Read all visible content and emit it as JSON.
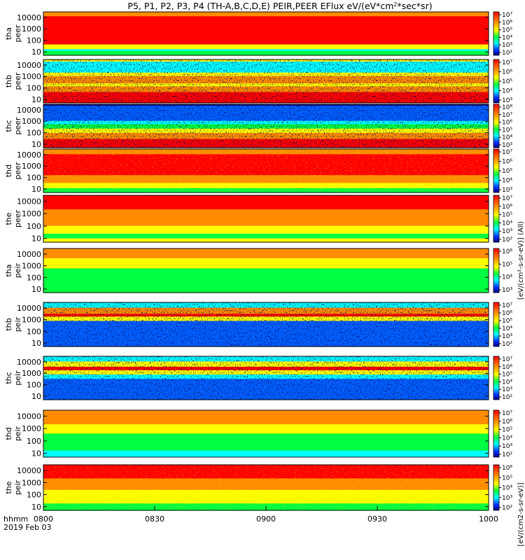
{
  "chart_data": {
    "type": "heatmap",
    "title": "P5, P1, P2, P3, P4 (TH-A,B,C,D,E) PEIR,PEER EFlux eV/(eV*cm",
    "title_sup": "2",
    "title_end": "*sec*sr)",
    "x_tick_labels": [
      "0800",
      "0830",
      "0900",
      "0930",
      "1000"
    ],
    "x_ticks_minutes": [
      0,
      30,
      60,
      90,
      120
    ],
    "xlim": [
      "08:00",
      "10:00"
    ],
    "x_axis_label": "hhmm",
    "x_axis_date": "2019 Feb 03",
    "y_scale": "log",
    "ylim": [
      5,
      30000
    ],
    "y_tick_labels": [
      "10",
      "100",
      "1000",
      "10000"
    ],
    "colorbar_scale": "log",
    "colorbar_title_peer": "[eV/(cm²-s-sr-eV)] (All)",
    "colorbar_title_peir": "[eV/(cm2-s-sr-eV)]",
    "colors": {
      "red": "#ff0000",
      "orange": "#ff8c00",
      "yellow": "#ffff00",
      "green": "#00ff40",
      "cyan": "#00ffff",
      "blue": "#0060ff",
      "navy": "#000080",
      "black": "#000000"
    },
    "panels": [
      {
        "l1": "tha",
        "l2": "peer",
        "cb_ticks": [
          "10⁷",
          "10⁶",
          "10⁵",
          "10⁴",
          "10³",
          "10²"
        ]
      },
      {
        "l1": "thb",
        "l2": "peer",
        "cb_ticks": [
          "10⁷",
          "10⁶",
          "10⁵",
          "10⁴",
          "10³"
        ]
      },
      {
        "l1": "thc",
        "l2": "peer",
        "cb_ticks": [
          "10⁸",
          "10⁷",
          "10⁶",
          "10⁵",
          "10⁴",
          "10³"
        ]
      },
      {
        "l1": "thd",
        "l2": "peer",
        "cb_ticks": [
          "10⁷",
          "10⁶",
          "10⁵",
          "10⁴",
          "10³"
        ]
      },
      {
        "l1": "the",
        "l2": "peer",
        "cb_ticks": [
          "10⁷",
          "10⁶",
          "10⁵",
          "10⁴",
          "10³",
          "10²"
        ]
      },
      {
        "l1": "tha",
        "l2": "peir",
        "cb_ticks": [
          "10⁶",
          "10⁵",
          "10⁴",
          "10³"
        ]
      },
      {
        "l1": "thb",
        "l2": "peir",
        "cb_ticks": [
          "10⁷",
          "10⁶",
          "10⁵",
          "10⁴",
          "10³",
          "10²"
        ]
      },
      {
        "l1": "thc",
        "l2": "peir",
        "cb_ticks": [
          "10⁷",
          "10⁶",
          "10⁵",
          "10⁴",
          "10³",
          "10²"
        ]
      },
      {
        "l1": "thd",
        "l2": "peir",
        "cb_ticks": [
          "10⁷",
          "10⁶",
          "10⁵",
          "10⁴",
          "10³",
          "10²"
        ]
      },
      {
        "l1": "the",
        "l2": "peir",
        "cb_ticks": [
          "10⁶",
          "10⁵",
          "10⁴",
          "10³",
          "10²"
        ]
      }
    ]
  }
}
